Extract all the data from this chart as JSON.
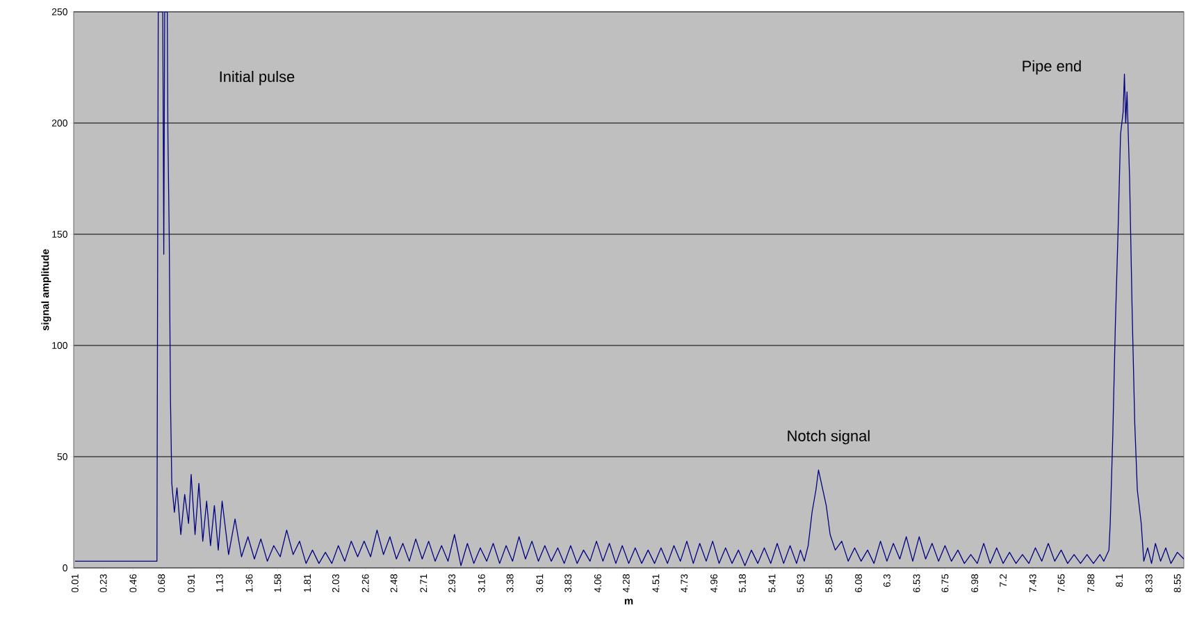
{
  "chart_data": {
    "type": "line",
    "xlabel": "m",
    "ylabel": "signal amplitude",
    "xlim": [
      0,
      8.6
    ],
    "ylim": [
      0,
      250
    ],
    "xticks": [
      0.01,
      0.23,
      0.46,
      0.68,
      0.91,
      1.13,
      1.36,
      1.58,
      1.81,
      2.03,
      2.26,
      2.48,
      2.71,
      2.93,
      3.16,
      3.38,
      3.61,
      3.83,
      4.06,
      4.28,
      4.51,
      4.73,
      4.96,
      5.18,
      5.41,
      5.63,
      5.85,
      6.08,
      6.3,
      6.53,
      6.75,
      6.98,
      7.2,
      7.43,
      7.65,
      7.88,
      8.1,
      8.33,
      8.55
    ],
    "yticks": [
      0,
      50,
      100,
      150,
      200,
      250
    ],
    "grid": "y",
    "annotations": [
      "Initial pulse",
      "Notch signal",
      "Pipe end"
    ],
    "x": [
      0.01,
      0.645,
      0.655,
      0.69,
      0.698,
      0.705,
      0.725,
      0.73,
      0.74,
      0.75,
      0.76,
      0.78,
      0.8,
      0.83,
      0.86,
      0.89,
      0.91,
      0.94,
      0.97,
      1.0,
      1.03,
      1.06,
      1.09,
      1.12,
      1.15,
      1.2,
      1.25,
      1.3,
      1.35,
      1.4,
      1.45,
      1.5,
      1.55,
      1.6,
      1.65,
      1.7,
      1.75,
      1.8,
      1.85,
      1.9,
      1.95,
      2.0,
      2.05,
      2.1,
      2.15,
      2.2,
      2.25,
      2.3,
      2.35,
      2.4,
      2.45,
      2.5,
      2.55,
      2.6,
      2.65,
      2.7,
      2.75,
      2.8,
      2.85,
      2.9,
      2.95,
      3.0,
      3.05,
      3.1,
      3.15,
      3.2,
      3.25,
      3.3,
      3.35,
      3.4,
      3.45,
      3.5,
      3.55,
      3.6,
      3.65,
      3.7,
      3.75,
      3.8,
      3.85,
      3.9,
      3.95,
      4.0,
      4.05,
      4.1,
      4.15,
      4.2,
      4.25,
      4.3,
      4.35,
      4.4,
      4.45,
      4.5,
      4.55,
      4.6,
      4.65,
      4.7,
      4.75,
      4.8,
      4.85,
      4.9,
      4.95,
      5.0,
      5.05,
      5.1,
      5.15,
      5.2,
      5.25,
      5.3,
      5.35,
      5.4,
      5.45,
      5.5,
      5.55,
      5.6,
      5.63,
      5.66,
      5.69,
      5.72,
      5.75,
      5.77,
      5.8,
      5.83,
      5.86,
      5.9,
      5.95,
      6.0,
      6.05,
      6.1,
      6.15,
      6.2,
      6.25,
      6.3,
      6.35,
      6.4,
      6.45,
      6.5,
      6.55,
      6.6,
      6.65,
      6.7,
      6.75,
      6.8,
      6.85,
      6.9,
      6.95,
      7.0,
      7.05,
      7.1,
      7.15,
      7.2,
      7.25,
      7.3,
      7.35,
      7.4,
      7.45,
      7.5,
      7.55,
      7.6,
      7.65,
      7.7,
      7.75,
      7.8,
      7.85,
      7.9,
      7.95,
      7.98,
      8.02,
      8.03,
      8.05,
      8.07,
      8.09,
      8.11,
      8.13,
      8.14,
      8.15,
      8.16,
      8.18,
      8.2,
      8.22,
      8.24,
      8.27,
      8.29,
      8.32,
      8.35,
      8.38,
      8.42,
      8.46,
      8.5,
      8.55,
      8.6
    ],
    "values": [
      3,
      3,
      250,
      250,
      141,
      250,
      250,
      195,
      150,
      75,
      38,
      25,
      36,
      15,
      33,
      20,
      42,
      15,
      38,
      12,
      30,
      10,
      28,
      8,
      30,
      6,
      22,
      5,
      14,
      4,
      13,
      3,
      10,
      5,
      17,
      6,
      12,
      2,
      8,
      2,
      7,
      2,
      10,
      3,
      12,
      5,
      12,
      5,
      17,
      6,
      14,
      4,
      11,
      3,
      13,
      4,
      12,
      3,
      10,
      3,
      15,
      1,
      11,
      2,
      9,
      3,
      11,
      2,
      10,
      3,
      14,
      4,
      12,
      3,
      10,
      3,
      9,
      2,
      10,
      2,
      8,
      3,
      12,
      3,
      11,
      2,
      10,
      2,
      9,
      2,
      8,
      2,
      9,
      2,
      10,
      3,
      12,
      2,
      11,
      3,
      12,
      2,
      9,
      2,
      8,
      1,
      8,
      2,
      9,
      2,
      11,
      2,
      10,
      2,
      8,
      3,
      10,
      25,
      35,
      44,
      36,
      28,
      15,
      8,
      12,
      3,
      9,
      3,
      8,
      2,
      12,
      3,
      11,
      4,
      14,
      3,
      14,
      4,
      11,
      3,
      10,
      3,
      8,
      2,
      6,
      2,
      11,
      2,
      9,
      2,
      7,
      2,
      6,
      2,
      9,
      3,
      11,
      3,
      8,
      2,
      6,
      2,
      6,
      2,
      6,
      3,
      8,
      20,
      60,
      110,
      150,
      195,
      205,
      222,
      200,
      214,
      175,
      115,
      65,
      35,
      20,
      3,
      9,
      2,
      11,
      3,
      9,
      2,
      7,
      4
    ],
    "color": "#000080"
  }
}
